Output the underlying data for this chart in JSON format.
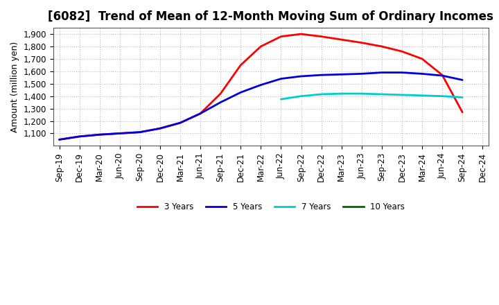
{
  "title": "[6082]  Trend of Mean of 12-Month Moving Sum of Ordinary Incomes",
  "ylabel": "Amount (million yen)",
  "background_color": "#ffffff",
  "grid_color": "#aaaaaa",
  "x_labels": [
    "Sep-19",
    "Dec-19",
    "Mar-20",
    "Jun-20",
    "Sep-20",
    "Dec-20",
    "Mar-21",
    "Jun-21",
    "Sep-21",
    "Dec-21",
    "Mar-22",
    "Jun-22",
    "Sep-22",
    "Dec-22",
    "Mar-23",
    "Jun-23",
    "Sep-23",
    "Dec-23",
    "Mar-24",
    "Jun-24",
    "Sep-24",
    "Dec-24"
  ],
  "series": {
    "3 Years": {
      "color": "#ff0000",
      "data": [
        1050,
        1075,
        1090,
        1100,
        1110,
        1140,
        1185,
        1260,
        1420,
        1650,
        1800,
        1880,
        1900,
        1880,
        1855,
        1830,
        1800,
        1760,
        1700,
        1570,
        1270,
        null
      ]
    },
    "5 Years": {
      "color": "#0000dd",
      "data": [
        1050,
        1075,
        1090,
        1100,
        1110,
        1140,
        1185,
        1260,
        1350,
        1430,
        1490,
        1540,
        1560,
        1570,
        1575,
        1580,
        1590,
        1590,
        1580,
        1565,
        1530,
        null
      ]
    },
    "7 Years": {
      "color": "#00cccc",
      "data": [
        null,
        null,
        null,
        null,
        null,
        null,
        null,
        null,
        null,
        null,
        null,
        1375,
        1400,
        1415,
        1420,
        1420,
        1415,
        1410,
        1405,
        1400,
        1390,
        null
      ]
    },
    "10 Years": {
      "color": "#006600",
      "data": [
        null,
        null,
        null,
        null,
        null,
        null,
        null,
        null,
        null,
        null,
        null,
        null,
        null,
        null,
        null,
        null,
        null,
        null,
        null,
        null,
        null,
        null
      ]
    }
  },
  "ylim": [
    1000,
    1950
  ],
  "yticks": [
    1100,
    1200,
    1300,
    1400,
    1500,
    1600,
    1700,
    1800,
    1900
  ],
  "title_fontsize": 12,
  "axis_fontsize": 9,
  "tick_fontsize": 8.5
}
